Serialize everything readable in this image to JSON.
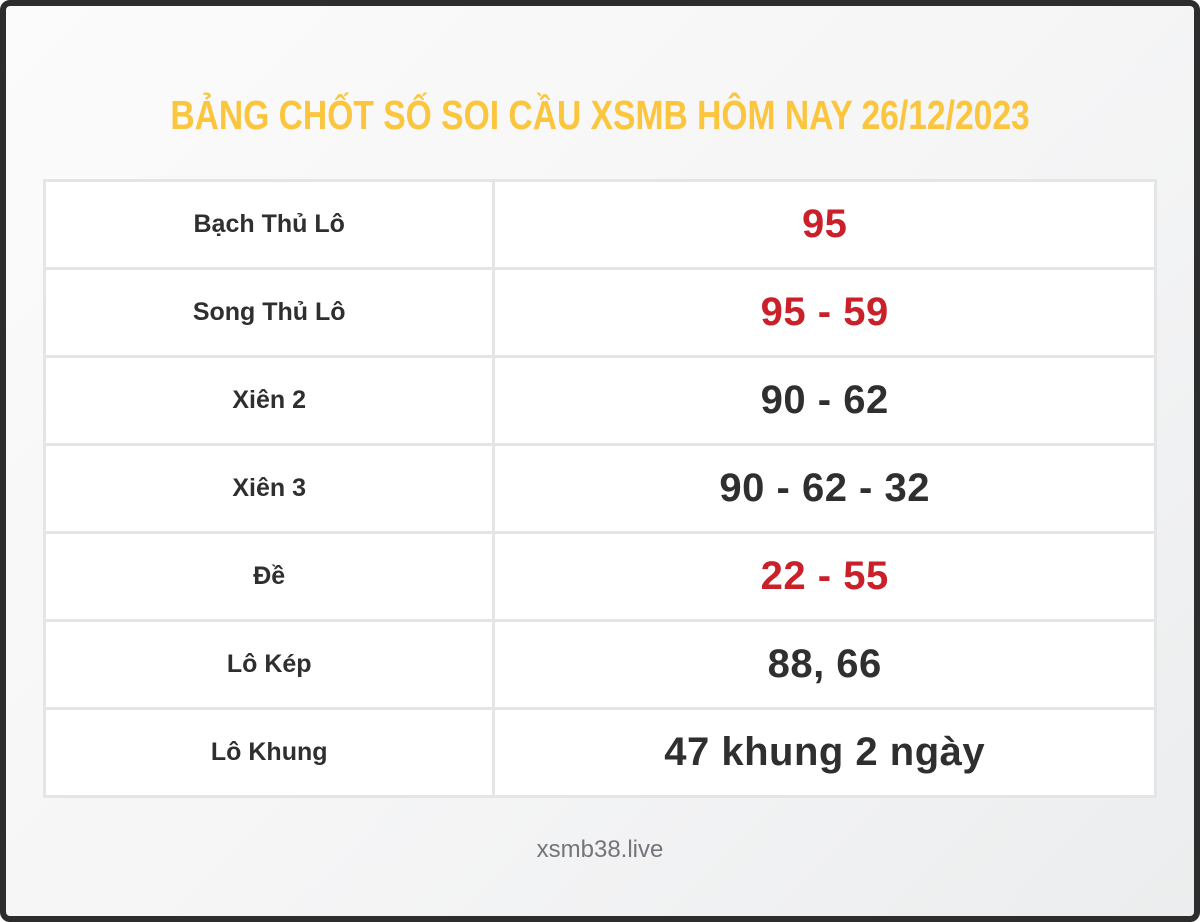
{
  "title": "BẢNG CHỐT SỐ SOI CẦU XSMB HÔM NAY 26/12/2023",
  "colors": {
    "title": "#fbc53d",
    "highlight": "#c9202a",
    "text": "#2f2f2f",
    "frame_border": "#2d2d2d",
    "cell_border": "#e5e5e6",
    "footer_text": "#74747a"
  },
  "table": {
    "rows": [
      {
        "label": "Bạch Thủ Lô",
        "value": "95",
        "highlight": true
      },
      {
        "label": "Song Thủ Lô",
        "value": "95 - 59",
        "highlight": true
      },
      {
        "label": "Xiên 2",
        "value": "90 - 62",
        "highlight": false
      },
      {
        "label": "Xiên 3",
        "value": "90 - 62 - 32",
        "highlight": false
      },
      {
        "label": "Đề",
        "value": "22 - 55",
        "highlight": true
      },
      {
        "label": "Lô Kép",
        "value": "88, 66",
        "highlight": false
      },
      {
        "label": "Lô Khung",
        "value": "47 khung 2 ngày",
        "highlight": false
      }
    ]
  },
  "footer": {
    "site": "xsmb38.live"
  }
}
